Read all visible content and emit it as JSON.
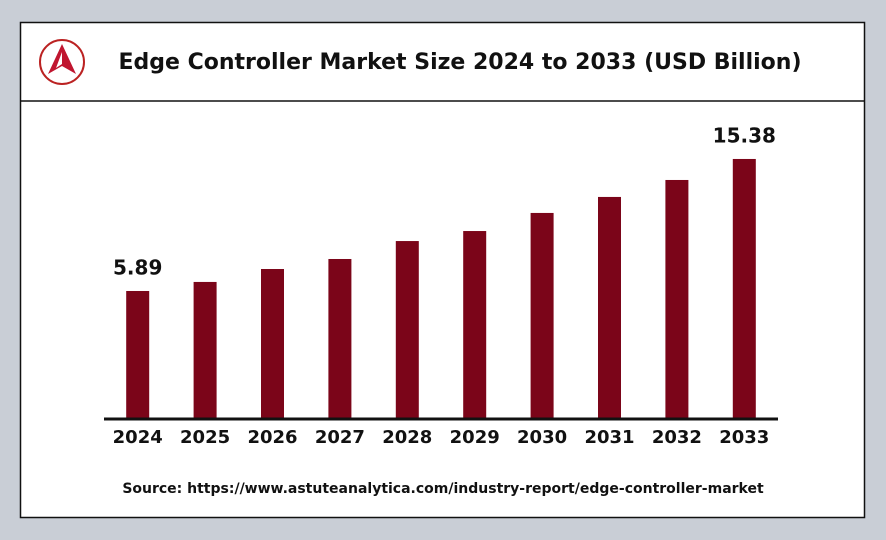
{
  "chart_data": {
    "type": "bar",
    "title": "Edge Controller Market Size 2024 to 2033 (USD Billion)",
    "categories": [
      "2024",
      "2025",
      "2026",
      "2027",
      "2028",
      "2029",
      "2030",
      "2031",
      "2032",
      "2033"
    ],
    "values": [
      5.89,
      6.54,
      7.47,
      8.19,
      9.48,
      10.2,
      11.5,
      12.65,
      13.87,
      15.38
    ],
    "value_labels": [
      "5.89",
      null,
      null,
      null,
      null,
      null,
      null,
      null,
      null,
      "15.38"
    ],
    "color": "#7b0519",
    "ylim": [
      -3.24,
      18.9
    ],
    "source": "Source: https://www.astuteanalytica.com/industry-report/edge-controller-market"
  }
}
